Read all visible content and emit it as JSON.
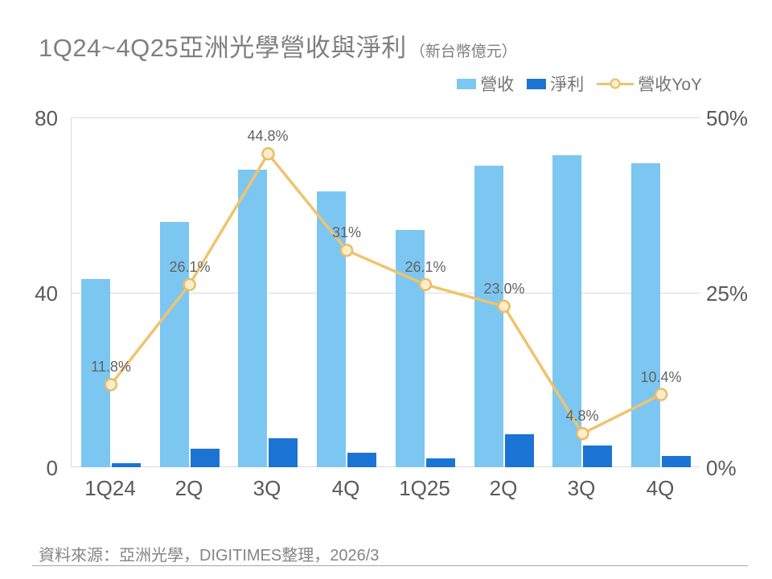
{
  "title": {
    "main": "1Q24~4Q25亞洲光學營收與淨利",
    "unit": "（新台幣億元）"
  },
  "legend": [
    {
      "label": "營收",
      "type": "bar",
      "color": "#7cc6f2"
    },
    {
      "label": "淨利",
      "type": "bar",
      "color": "#1b74d4"
    },
    {
      "label": "營收YoY",
      "type": "line",
      "color": "#f0c36c"
    }
  ],
  "colors": {
    "revenue_bar": "#7cc6f2",
    "profit_bar": "#1b74d4",
    "yoy_line": "#f0c36c",
    "yoy_marker_fill": "#fbeec8",
    "yoy_marker_stroke": "#e9bc6b",
    "gridline": "#d9d9d9",
    "axis_text": "#595959",
    "title_text": "#7f7f7f"
  },
  "chart_data": {
    "type": "bar",
    "subtype": "grouped-bars-with-line",
    "title": "1Q24~4Q25亞洲光學營收與淨利（新台幣億元）",
    "categories": [
      "1Q24",
      "2Q",
      "3Q",
      "4Q",
      "1Q25",
      "2Q",
      "3Q",
      "4Q"
    ],
    "series": [
      {
        "name": "營收",
        "type": "bar",
        "axis": "left",
        "values": [
          43,
          56,
          68,
          63,
          54.2,
          68.9,
          71.3,
          69.6
        ]
      },
      {
        "name": "淨利",
        "type": "bar",
        "axis": "left",
        "values": [
          1,
          4.2,
          6.6,
          3.4,
          2,
          7.5,
          4.9,
          2.6
        ]
      },
      {
        "name": "營收YoY",
        "type": "line",
        "axis": "right",
        "values": [
          11.8,
          26.1,
          44.8,
          31,
          26.1,
          23.0,
          4.8,
          10.4
        ],
        "labels": [
          "11.8%",
          "26.1%",
          "44.8%",
          "31%",
          "26.1%",
          "23.0%",
          "4.8%",
          "10.4%"
        ]
      }
    ],
    "left_axis": {
      "ticks": [
        "0",
        "40",
        "80"
      ],
      "min": 0,
      "max": 80
    },
    "right_axis": {
      "ticks": [
        "0%",
        "25%",
        "50%"
      ],
      "min": 0,
      "max": 50
    },
    "grid": true,
    "legend_position": "top-right"
  },
  "footer": {
    "source": "資料來源：亞洲光學，DIGITIMES整理，2026/3"
  }
}
